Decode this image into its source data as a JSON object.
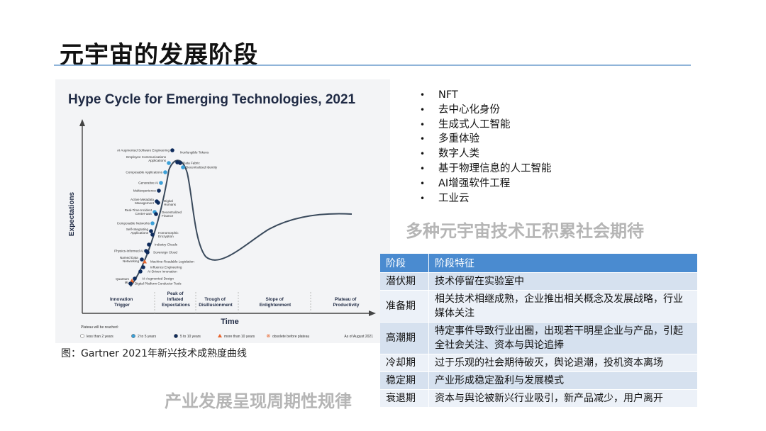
{
  "slide": {
    "title": "元宇宙的发展阶段"
  },
  "figure": {
    "title": "Hype Cycle for Emerging Technologies, 2021",
    "y_axis_label": "Expectations",
    "x_axis_label": "Time",
    "phases": [
      {
        "lines": [
          "Innovation",
          "Trigger"
        ]
      },
      {
        "lines": [
          "Peak of",
          "Inflated",
          "Expectations"
        ]
      },
      {
        "lines": [
          "Trough of",
          "Disillusionment"
        ]
      },
      {
        "lines": [
          "Slope of",
          "Enlightenment"
        ]
      },
      {
        "lines": [
          "Plateau of",
          "Productivity"
        ]
      }
    ],
    "technologies": [
      {
        "name": "AI Augmented Software Engineering",
        "color": "#0e2b5c"
      },
      {
        "name": "Nonfungible Tokens",
        "color": "#0e2b5c"
      },
      {
        "name": "Employee Communications Applications",
        "color": "#3ba0d8"
      },
      {
        "name": "Data Fabric",
        "color": "#0e2b5c"
      },
      {
        "name": "Decentralized Identity",
        "color": "#3ba0d8"
      },
      {
        "name": "Composable Applications",
        "color": "#3ba0d8"
      },
      {
        "name": "Generative AI",
        "color": "#3ba0d8"
      },
      {
        "name": "Multiexperience",
        "color": "#0e2b5c"
      },
      {
        "name": "Active Metadata Management",
        "color": "#0e2b5c"
      },
      {
        "name": "Digital Humans",
        "color": "#0e2b5c"
      },
      {
        "name": "Real-Time Incident Center-aaS",
        "color": "#3ba0d8"
      },
      {
        "name": "Decentralized Finance",
        "color": "#0e2b5c"
      },
      {
        "name": "Composable Networks",
        "color": "#3ba0d8"
      },
      {
        "name": "Self-Integrating Applications",
        "color": "#0e2b5c"
      },
      {
        "name": "Homomorphic Encryption",
        "color": "#0e2b5c"
      },
      {
        "name": "Industry Clouds",
        "color": "#0e2b5c"
      },
      {
        "name": "Physics-Informed AI",
        "color": "#0e2b5c"
      },
      {
        "name": "Sovereign Cloud",
        "color": "#0e2b5c"
      },
      {
        "name": "Named Data Networking",
        "color": "#0e2b5c"
      },
      {
        "name": "Machine-Readable Legislation",
        "color": "#e8632a"
      },
      {
        "name": "Influence Engineering",
        "color": "#0e2b5c"
      },
      {
        "name": "AI-Driven Innovation",
        "color": "#0e2b5c"
      },
      {
        "name": "Quantum ML",
        "color": "#e8632a"
      },
      {
        "name": "AI-Augmented Design",
        "color": "#0e2b5c"
      },
      {
        "name": "Digital Platform Conductor Tools",
        "color": "#0e2b5c"
      }
    ],
    "legend": {
      "title": "Plateau will be reached:",
      "items": [
        {
          "label": "less than 2 years",
          "shape": "hollow-circle",
          "color": "#ffffff"
        },
        {
          "label": "2 to 5 years",
          "shape": "circle",
          "color": "#3ba0d8"
        },
        {
          "label": "5 to 10 years",
          "shape": "circle",
          "color": "#0e2b5c"
        },
        {
          "label": "more than 10 years",
          "shape": "triangle",
          "color": "#e8632a"
        },
        {
          "label": "obsolete before plateau",
          "shape": "x",
          "color": "#e8632a"
        }
      ],
      "date_note": "As of August 2021"
    },
    "caption": "图：Gartner 2021年新兴技术成熟度曲线"
  },
  "left_tagline": "产业发展呈现周期性规律",
  "right_list": {
    "bullet": "•",
    "items": [
      "NFT",
      "去中心化身份",
      "生成式人工智能",
      "多重体验",
      "数字人类",
      "基于物理信息的人工智能",
      "AI增强软件工程",
      "工业云"
    ]
  },
  "right_tagline": "多种元宇宙技术正积累社会期待",
  "stage_table": {
    "headers": [
      "阶段",
      "阶段特征"
    ],
    "rows": [
      {
        "stage": "潜伏期",
        "feature": "技术停留在实验室中"
      },
      {
        "stage": "准备期",
        "feature": "相关技术相继成熟，企业推出相关概念及发展战略，行业媒体关注"
      },
      {
        "stage": "高潮期",
        "feature": "特定事件导致行业出圈，出现若干明星企业与产品，引起全社会关注、资本与舆论追捧"
      },
      {
        "stage": "冷却期",
        "feature": "过于乐观的社会期待破灭，舆论退潮，投机资本离场"
      },
      {
        "stage": "稳定期",
        "feature": "产业形成稳定盈利与发展模式"
      },
      {
        "stage": "衰退期",
        "feature": "资本与舆论被新兴行业吸引，新产品减少，用户离开"
      }
    ]
  }
}
